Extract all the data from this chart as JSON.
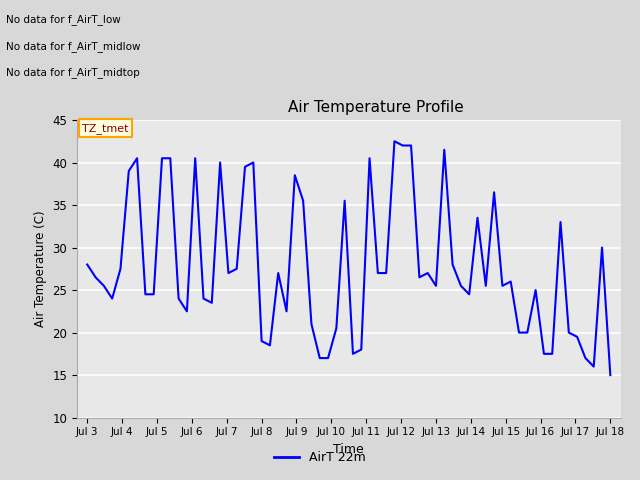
{
  "title": "Air Temperature Profile",
  "xlabel": "Time",
  "ylabel": "Air Temperature (C)",
  "ylim": [
    10,
    45
  ],
  "yticks": [
    10,
    15,
    20,
    25,
    30,
    35,
    40,
    45
  ],
  "line_color": "blue",
  "line_width": 1.5,
  "bg_color": "#d8d8d8",
  "plot_bg_color": "#e8e8e8",
  "legend_label": "AirT 22m",
  "annotations": [
    "No data for f_AirT_low",
    "No data for f_AirT_midlow",
    "No data for f_AirT_midtop"
  ],
  "annotation_box_text": "TZ_tmet",
  "x_tick_labels": [
    "Jul 3",
    "Jul 4",
    "Jul 5",
    "Jul 6",
    "Jul 7",
    "Jul 8",
    "Jul 9",
    "Jul 10",
    "Jul 11",
    "Jul 12",
    "Jul 13",
    "Jul 14",
    "Jul 15",
    "Jul 16",
    "Jul 17",
    "Jul 18"
  ],
  "temperature_data": [
    28.0,
    26.5,
    25.5,
    24.0,
    27.5,
    39.0,
    40.5,
    24.5,
    24.5,
    40.5,
    40.5,
    24.0,
    22.5,
    40.5,
    24.0,
    23.5,
    40.0,
    27.0,
    27.5,
    39.5,
    40.0,
    19.0,
    18.5,
    27.0,
    22.5,
    38.5,
    35.5,
    21.0,
    17.0,
    17.0,
    20.5,
    35.5,
    17.5,
    18.0,
    40.5,
    27.0,
    27.0,
    42.5,
    42.0,
    42.0,
    26.5,
    27.0,
    25.5,
    41.5,
    28.0,
    25.5,
    24.5,
    33.5,
    25.5,
    36.5,
    25.5,
    26.0,
    20.0,
    20.0,
    25.0,
    17.5,
    17.5,
    33.0,
    20.0,
    19.5,
    17.0,
    16.0,
    30.0,
    15.0
  ]
}
